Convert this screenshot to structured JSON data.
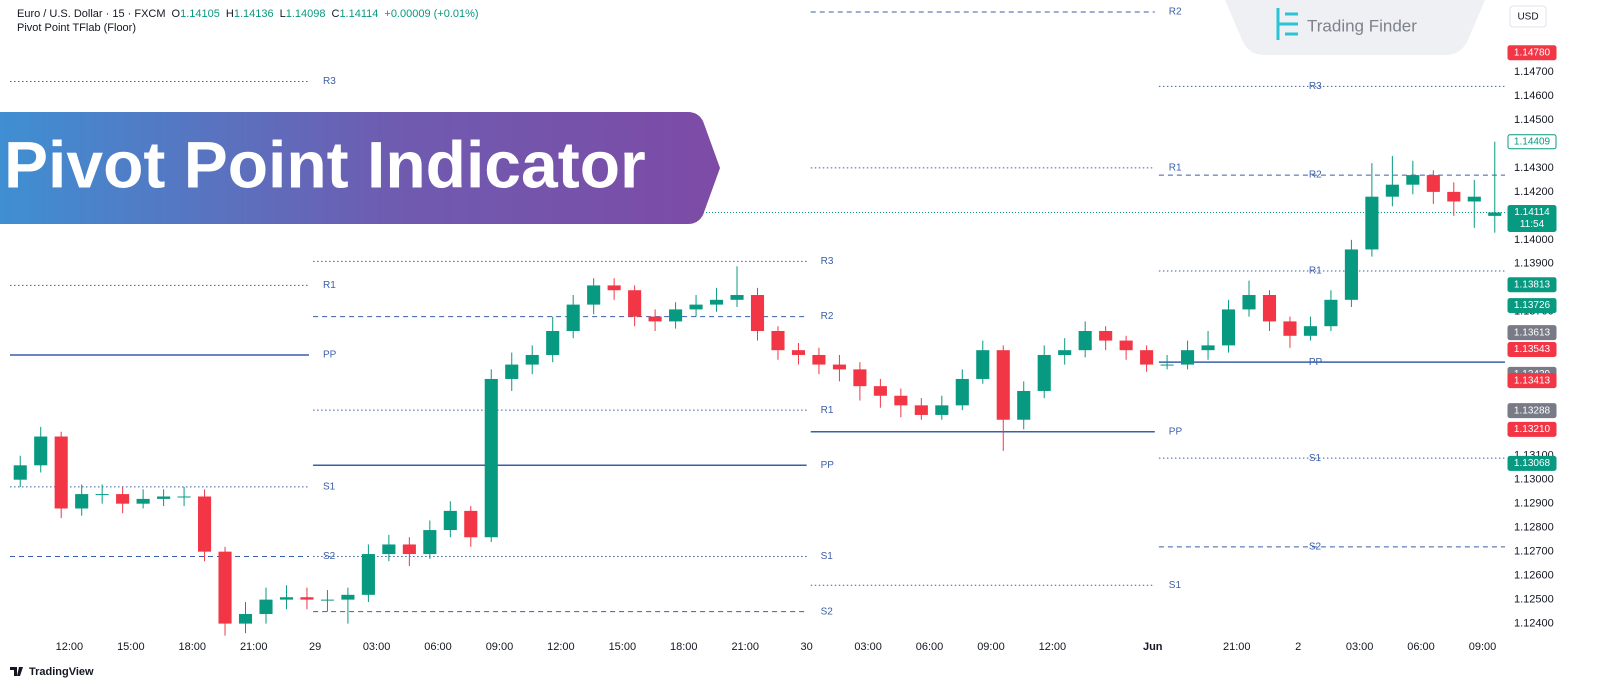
{
  "header": {
    "symbol": "Euro / U.S. Dollar · 15 · FXCM",
    "ohlc": [
      {
        "key": "O",
        "value": 1.14105
      },
      {
        "key": "H",
        "value": 1.14136
      },
      {
        "key": "L",
        "value": 1.14098
      },
      {
        "key": "C",
        "value": 1.14114
      }
    ],
    "change": "+0.00009 (+0.01%)",
    "indicator": "Pivot Point TFlab (Floor)",
    "currency": "USD"
  },
  "banner": {
    "title": "Pivot Point Indicator"
  },
  "logo": {
    "name": "Trading Finder"
  },
  "footer": {
    "brand": "TradingView"
  },
  "chart_data": {
    "type": "candlestick",
    "up_color": "#089981",
    "down_color": "#f23645",
    "pivot_color": "#3a5fa8",
    "grid": false,
    "xlim": [
      -0.5,
      72.5
    ],
    "xticks": [
      {
        "value": 2.4,
        "label": "12:00"
      },
      {
        "value": 5.4,
        "label": "15:00"
      },
      {
        "value": 8.4,
        "label": "18:00"
      },
      {
        "value": 11.4,
        "label": "21:00"
      },
      {
        "value": 14.4,
        "label": "29"
      },
      {
        "value": 17.4,
        "label": "03:00"
      },
      {
        "value": 20.4,
        "label": "06:00"
      },
      {
        "value": 23.4,
        "label": "09:00"
      },
      {
        "value": 26.4,
        "label": "12:00"
      },
      {
        "value": 29.4,
        "label": "15:00"
      },
      {
        "value": 32.4,
        "label": "18:00"
      },
      {
        "value": 35.4,
        "label": "21:00"
      },
      {
        "value": 38.4,
        "label": "30"
      },
      {
        "value": 41.4,
        "label": "03:00"
      },
      {
        "value": 44.4,
        "label": "06:00"
      },
      {
        "value": 47.4,
        "label": "09:00"
      },
      {
        "value": 50.4,
        "label": "12:00"
      },
      {
        "value": 55.3,
        "label": "Jun"
      },
      {
        "value": 59.4,
        "label": "21:00"
      },
      {
        "value": 62.4,
        "label": "2"
      },
      {
        "value": 65.4,
        "label": "03:00"
      },
      {
        "value": 68.4,
        "label": "06:00"
      },
      {
        "value": 71.4,
        "label": "09:00"
      }
    ],
    "ylim": [
      1.1234,
      1.15
    ],
    "yticks": [
      {
        "value": 1.124,
        "label": "1.12400"
      },
      {
        "value": 1.125,
        "label": "1.12500"
      },
      {
        "value": 1.126,
        "label": "1.12600"
      },
      {
        "value": 1.127,
        "label": "1.12700"
      },
      {
        "value": 1.128,
        "label": "1.12800"
      },
      {
        "value": 1.129,
        "label": "1.12900"
      },
      {
        "value": 1.13,
        "label": "1.13000"
      },
      {
        "value": 1.131,
        "label": "1.13100"
      },
      {
        "value": 1.137,
        "label": "1.13700"
      },
      {
        "value": 1.139,
        "label": "1.13900"
      },
      {
        "value": 1.14,
        "label": "1.14000"
      },
      {
        "value": 1.142,
        "label": "1.14200"
      },
      {
        "value": 1.143,
        "label": "1.14300"
      },
      {
        "value": 1.145,
        "label": "1.14500"
      },
      {
        "value": 1.146,
        "label": "1.14600"
      },
      {
        "value": 1.147,
        "label": "1.14700"
      }
    ],
    "open": [
      1.13,
      1.1306,
      1.1318,
      1.1288,
      1.1294,
      1.1294,
      1.129,
      1.1292,
      1.1293,
      1.1293,
      1.127,
      1.124,
      1.1244,
      1.125,
      1.1251,
      1.125,
      1.125,
      1.1252,
      1.1269,
      1.1273,
      1.1269,
      1.1279,
      1.1287,
      1.1276,
      1.1342,
      1.1348,
      1.1352,
      1.1362,
      1.1373,
      1.1381,
      1.1379,
      1.1368,
      1.1366,
      1.1371,
      1.1373,
      1.1375,
      1.1377,
      1.1362,
      1.1354,
      1.1352,
      1.1348,
      1.1346,
      1.1339,
      1.1335,
      1.1331,
      1.1327,
      1.1331,
      1.1342,
      1.1354,
      1.1325,
      1.1337,
      1.1352,
      1.1354,
      1.1362,
      1.1358,
      1.1354,
      1.1348,
      1.1348,
      1.1354,
      1.1356,
      1.1371,
      1.1377,
      1.1366,
      1.136,
      1.1364,
      1.1375,
      1.1396,
      1.1418,
      1.1423,
      1.1427,
      1.142,
      1.1416,
      1.141
    ],
    "high": [
      1.131,
      1.1322,
      1.132,
      1.1298,
      1.1298,
      1.1297,
      1.1296,
      1.1296,
      1.1297,
      1.1296,
      1.1272,
      1.1249,
      1.1255,
      1.1256,
      1.1255,
      1.1254,
      1.1255,
      1.1273,
      1.1277,
      1.1276,
      1.1283,
      1.1291,
      1.1289,
      1.1346,
      1.1353,
      1.1356,
      1.1368,
      1.1377,
      1.1384,
      1.1384,
      1.1381,
      1.1371,
      1.1374,
      1.1377,
      1.138,
      1.1389,
      1.138,
      1.1364,
      1.1357,
      1.1355,
      1.1352,
      1.1349,
      1.1342,
      1.1338,
      1.1334,
      1.1335,
      1.1346,
      1.1358,
      1.1356,
      1.1341,
      1.1356,
      1.1359,
      1.1366,
      1.1364,
      1.136,
      1.1356,
      1.1352,
      1.1358,
      1.1362,
      1.1375,
      1.1383,
      1.1379,
      1.1368,
      1.1368,
      1.1379,
      1.14,
      1.1432,
      1.1435,
      1.1433,
      1.1429,
      1.1424,
      1.1425,
      1.14409
    ],
    "low": [
      1.1297,
      1.1303,
      1.1284,
      1.1285,
      1.129,
      1.1286,
      1.1288,
      1.1289,
      1.1289,
      1.1266,
      1.1235,
      1.1236,
      1.124,
      1.1246,
      1.1246,
      1.1245,
      1.124,
      1.1249,
      1.1266,
      1.1264,
      1.1267,
      1.1276,
      1.1272,
      1.1274,
      1.1337,
      1.1344,
      1.1349,
      1.1359,
      1.1369,
      1.1375,
      1.1364,
      1.1362,
      1.1363,
      1.1368,
      1.137,
      1.1372,
      1.1358,
      1.135,
      1.1348,
      1.1344,
      1.1341,
      1.1333,
      1.133,
      1.1326,
      1.1325,
      1.1325,
      1.1329,
      1.134,
      1.1312,
      1.1321,
      1.1334,
      1.1348,
      1.1351,
      1.1354,
      1.135,
      1.1345,
      1.1346,
      1.1346,
      1.135,
      1.1353,
      1.1368,
      1.1362,
      1.1355,
      1.1358,
      1.1362,
      1.1372,
      1.1393,
      1.1414,
      1.1419,
      1.1415,
      1.141,
      1.1405,
      1.1403
    ],
    "close": [
      1.1306,
      1.1318,
      1.1288,
      1.1294,
      1.1294,
      1.129,
      1.1292,
      1.1293,
      1.1293,
      1.127,
      1.124,
      1.1244,
      1.125,
      1.1251,
      1.125,
      1.125,
      1.1252,
      1.1269,
      1.1273,
      1.1269,
      1.1279,
      1.1287,
      1.1276,
      1.1342,
      1.1348,
      1.1352,
      1.1362,
      1.1373,
      1.1381,
      1.1379,
      1.1368,
      1.1366,
      1.1371,
      1.1373,
      1.1375,
      1.1377,
      1.1362,
      1.1354,
      1.1352,
      1.1348,
      1.1346,
      1.1339,
      1.1335,
      1.1331,
      1.1327,
      1.1331,
      1.1342,
      1.1354,
      1.1325,
      1.1337,
      1.1352,
      1.1354,
      1.1362,
      1.1358,
      1.1354,
      1.1348,
      1.1348,
      1.1354,
      1.1356,
      1.1371,
      1.1377,
      1.1366,
      1.136,
      1.1364,
      1.1375,
      1.1396,
      1.1418,
      1.1423,
      1.1427,
      1.142,
      1.1416,
      1.1418,
      1.14114
    ],
    "pivots": [
      {
        "start": -0.5,
        "end": 14.1,
        "levels": [
          {
            "name": "R3",
            "value": 1.1466
          },
          {
            "name": "R2",
            "value": 1.1436
          },
          {
            "name": "R1",
            "value": 1.1381
          },
          {
            "name": "PP",
            "value": 1.1352
          },
          {
            "name": "S1",
            "value": 1.1297
          },
          {
            "name": "S2",
            "value": 1.1268
          }
        ]
      },
      {
        "start": 14.3,
        "end": 38.4,
        "levels": [
          {
            "name": "R3",
            "value": 1.1391
          },
          {
            "name": "R2",
            "value": 1.1368
          },
          {
            "name": "R1",
            "value": 1.1329
          },
          {
            "name": "PP",
            "value": 1.1306
          },
          {
            "name": "S1",
            "value": 1.1268
          },
          {
            "name": "S2",
            "value": 1.1245
          }
        ]
      },
      {
        "start": 38.6,
        "end": 55.4,
        "levels": [
          {
            "name": "R2",
            "value": 1.1495
          },
          {
            "name": "R1",
            "value": 1.143
          },
          {
            "name": "PP",
            "value": 1.132
          },
          {
            "name": "S1",
            "value": 1.1256
          }
        ]
      },
      {
        "start": 55.6,
        "end": 72.5,
        "levels": [
          {
            "name": "R3",
            "value": 1.1464
          },
          {
            "name": "R2",
            "value": 1.1427
          },
          {
            "name": "R1",
            "value": 1.1387
          },
          {
            "name": "PP",
            "value": 1.1349
          },
          {
            "name": "S1",
            "value": 1.1309
          },
          {
            "name": "S2",
            "value": 1.1272
          }
        ]
      }
    ],
    "price_tags": [
      {
        "value": 1.1478,
        "label": "1.14780",
        "color": "#f23645"
      },
      {
        "value": 1.14409,
        "label": "1.14409",
        "color": "#089981",
        "outline": true
      },
      {
        "value": 1.14114,
        "label": "1.14114",
        "color": "#089981",
        "sublabel": "11:54"
      },
      {
        "value": 1.13813,
        "label": "1.13813",
        "color": "#089981"
      },
      {
        "value": 1.13726,
        "label": "1.13726",
        "color": "#089981"
      },
      {
        "value": 1.13613,
        "label": "1.13613",
        "color": "#787b86"
      },
      {
        "value": 1.13543,
        "label": "1.13543",
        "color": "#f23645"
      },
      {
        "value": 1.13439,
        "label": "1.13439",
        "color": "#787b86"
      },
      {
        "value": 1.13413,
        "label": "1.13413",
        "color": "#f23645"
      },
      {
        "value": 1.13288,
        "label": "1.13288",
        "color": "#787b86"
      },
      {
        "value": 1.1321,
        "label": "1.13210",
        "color": "#f23645"
      },
      {
        "value": 1.13068,
        "label": "1.13068",
        "color": "#089981"
      }
    ]
  }
}
